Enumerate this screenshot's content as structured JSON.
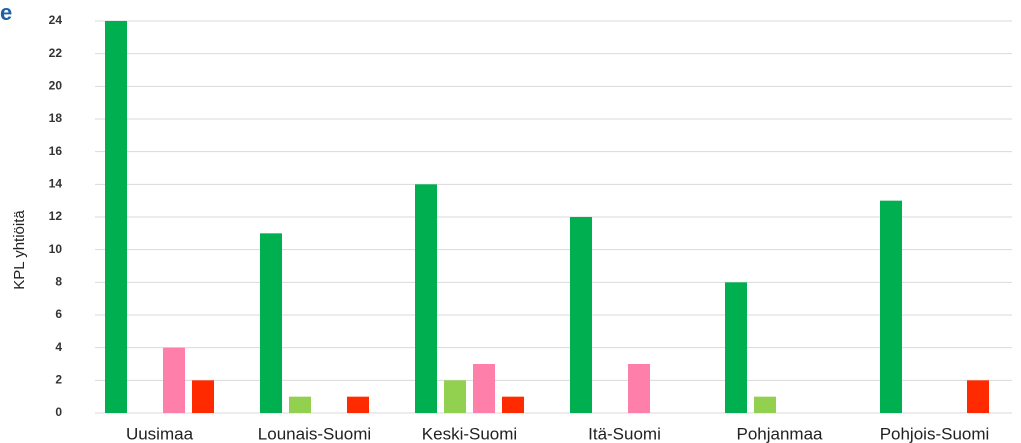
{
  "chart_data": {
    "type": "bar",
    "title": "e",
    "y_label": "KPL yhtiöitä",
    "categories": [
      "Uusimaa",
      "Lounais-Suomi",
      "Keski-Suomi",
      "Itä-Suomi",
      "Pohjanmaa",
      "Pohjois-Suomi"
    ],
    "series": [
      {
        "color": "#00b050",
        "values": [
          24,
          11,
          14,
          12,
          8,
          13
        ]
      },
      {
        "color": "#92d050",
        "values": [
          0,
          1,
          2,
          0,
          1,
          0
        ]
      },
      {
        "color": "#ff7fab",
        "values": [
          4,
          0,
          3,
          3,
          0,
          0
        ]
      },
      {
        "color": "#ff2a00",
        "values": [
          2,
          1,
          1,
          0,
          0,
          2
        ]
      }
    ],
    "ylim": [
      0,
      24
    ],
    "yticks": [
      0,
      2,
      4,
      6,
      8,
      10,
      12,
      14,
      16,
      18,
      20,
      22,
      24
    ],
    "grid": true
  }
}
